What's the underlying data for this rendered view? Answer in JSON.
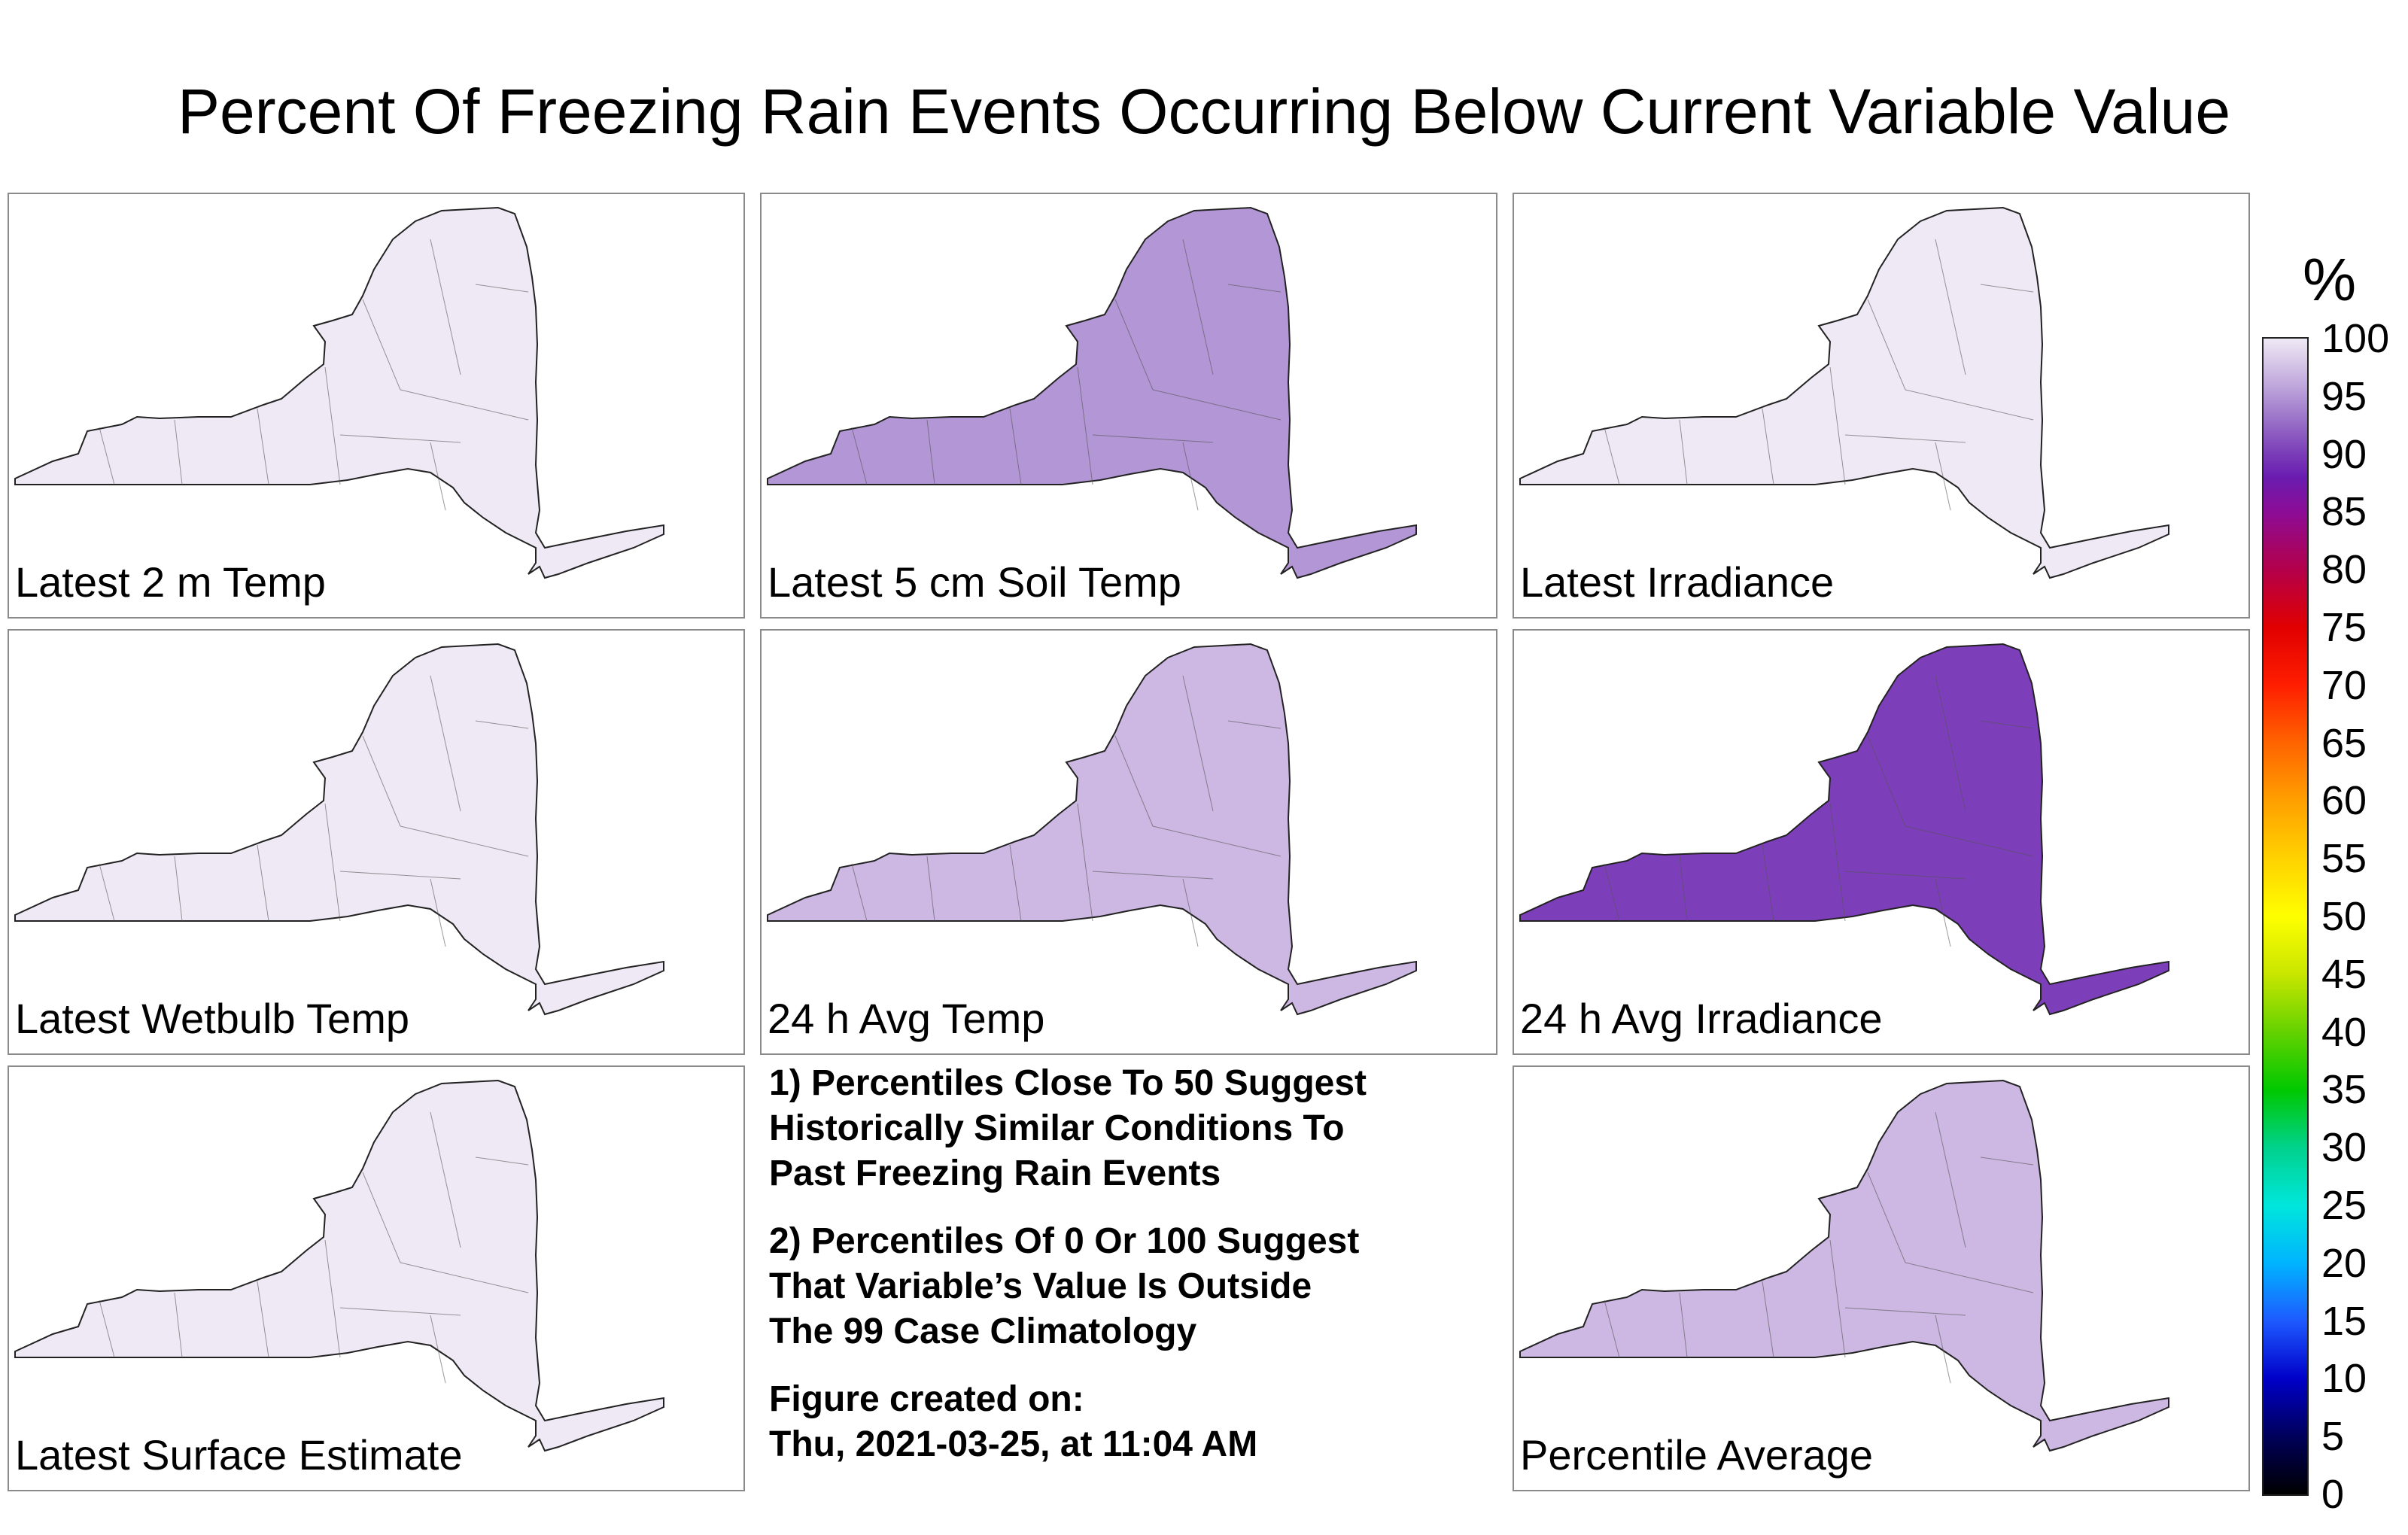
{
  "title": "Percent Of Freezing Rain Events Occurring Below Current Variable Value",
  "panels": [
    {
      "label": "Latest 2 m Temp",
      "value": 100
    },
    {
      "label": "Latest 5 cm Soil Temp",
      "value": 95
    },
    {
      "label": "Latest Irradiance",
      "value": 100
    },
    {
      "label": "Latest Wetbulb Temp",
      "value": 100
    },
    {
      "label": "24 h Avg Temp",
      "value": 97
    },
    {
      "label": "24 h Avg Irradiance",
      "value": 90
    },
    {
      "label": "Latest Surface Estimate",
      "value": 100
    },
    {
      "label": "Percentile Average",
      "value": 97
    }
  ],
  "notes": {
    "note1": [
      "1) Percentiles Close To 50 Suggest",
      "Historically Similar Conditions To",
      "Past Freezing Rain Events"
    ],
    "note2": [
      "2) Percentiles Of 0 Or 100 Suggest",
      "That Variable’s Value Is Outside",
      "The 99 Case Climatology"
    ],
    "created": [
      "Figure created on:",
      "Thu, 2021-03-25, at 11:04 AM"
    ]
  },
  "colorbar": {
    "unit": "%",
    "ticks": [
      "100",
      "95",
      "90",
      "85",
      "80",
      "75",
      "70",
      "65",
      "60",
      "55",
      "50",
      "45",
      "40",
      "35",
      "30",
      "25",
      "20",
      "15",
      "10",
      "5",
      "0"
    ]
  }
}
